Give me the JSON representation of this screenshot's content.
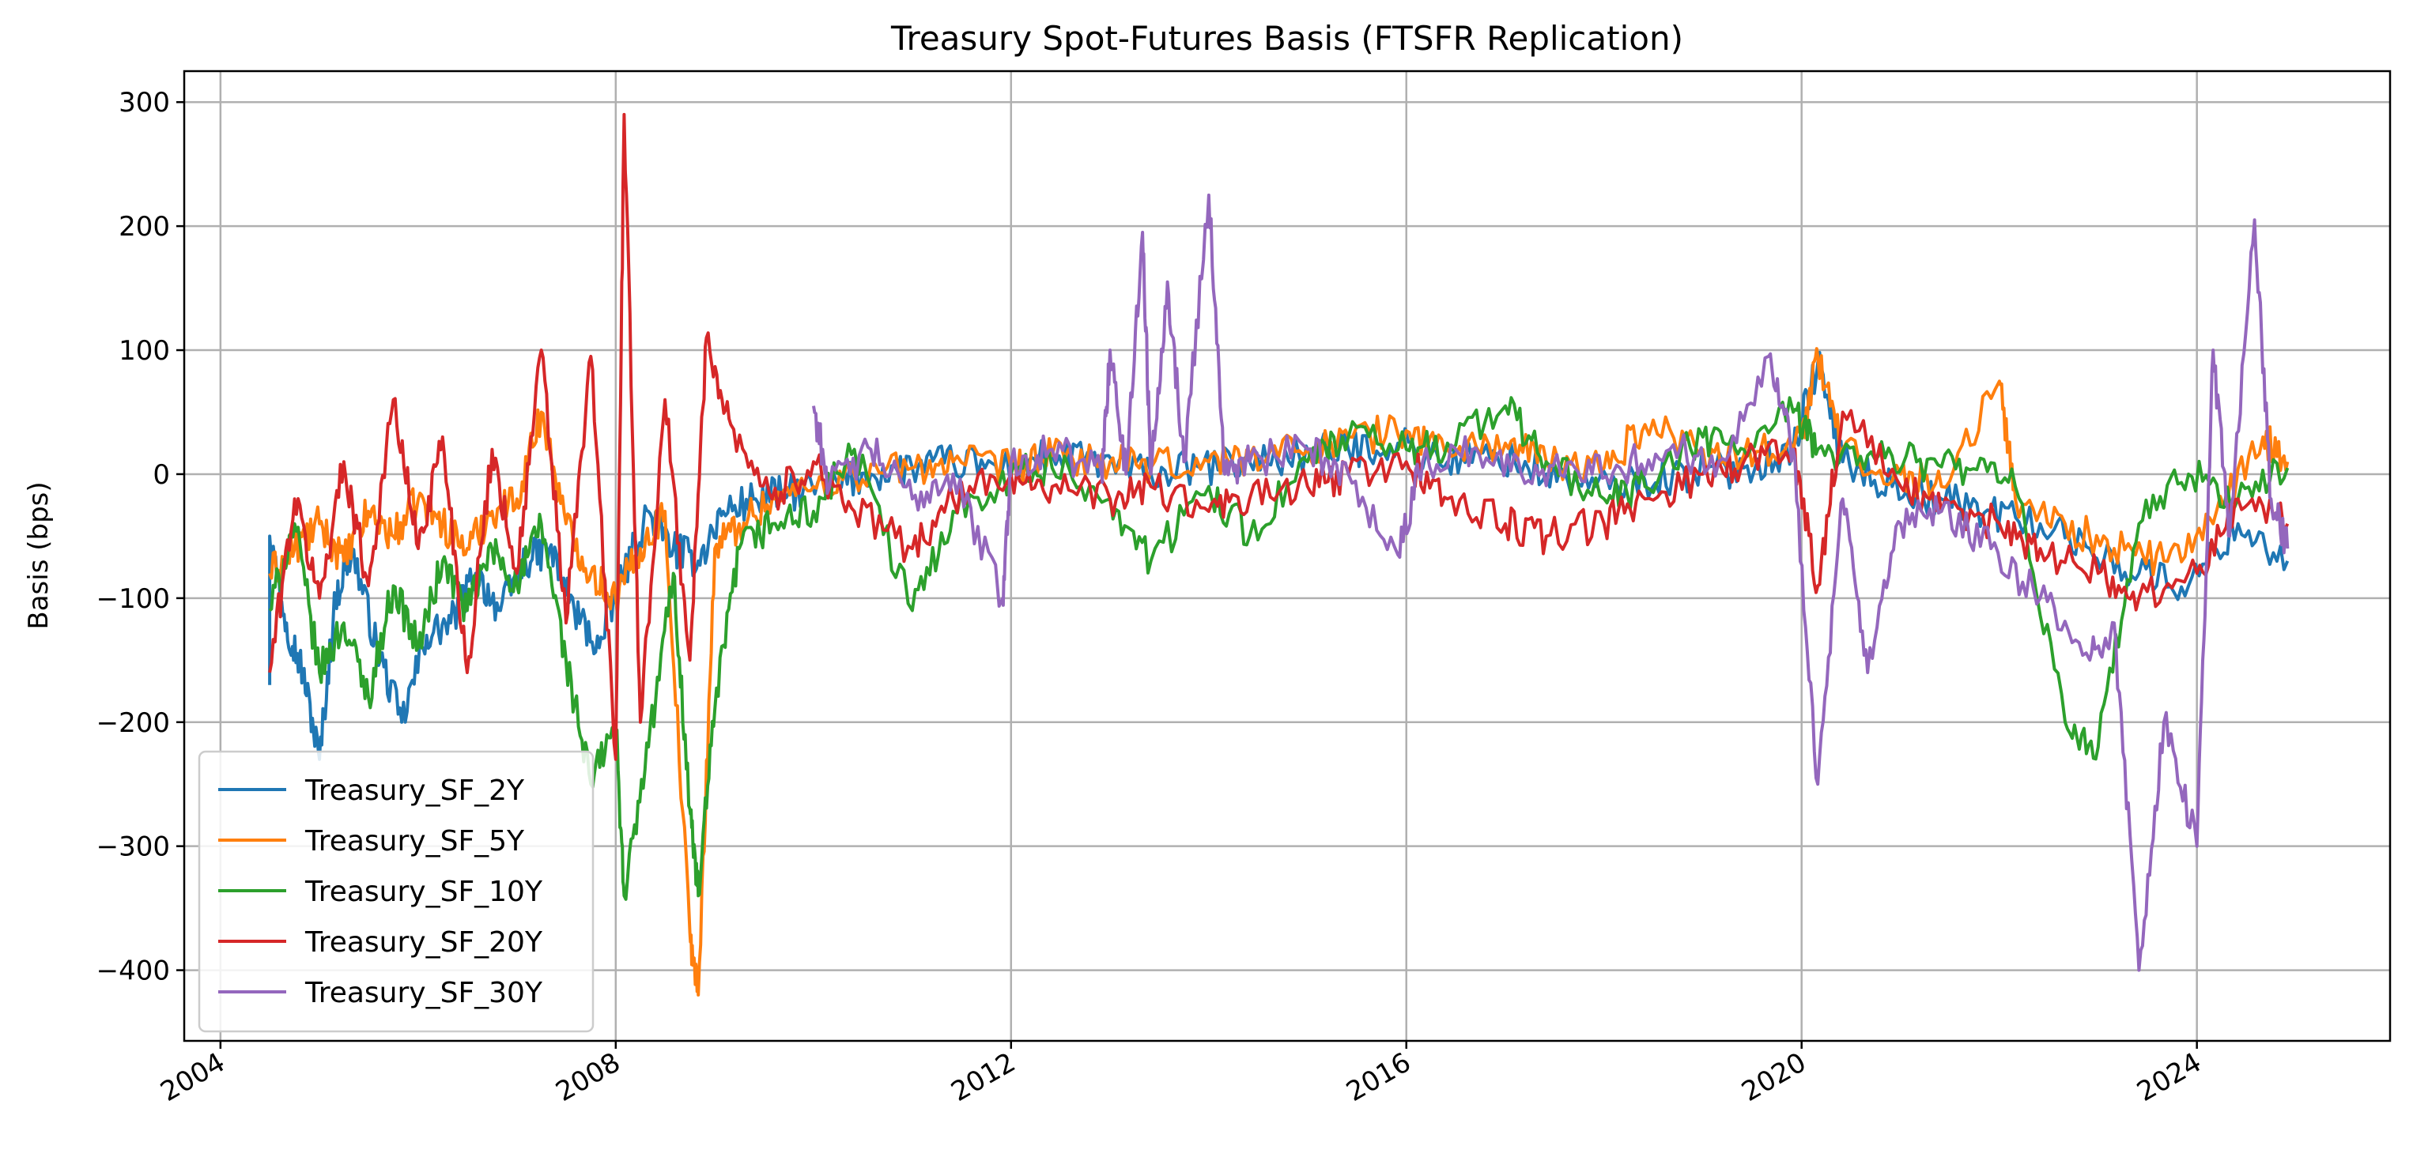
{
  "chart_data": {
    "type": "line",
    "title": "Treasury Spot-Futures Basis (FTSFR Replication)",
    "xlabel": "",
    "ylabel": "Basis (bps)",
    "x_axis_type": "date",
    "xlim": [
      "2003-08-20",
      "2025-12-15"
    ],
    "ylim": [
      -457,
      325
    ],
    "xticks": [
      "2004",
      "2008",
      "2012",
      "2016",
      "2020",
      "2024"
    ],
    "yticks": [
      -400,
      -300,
      -200,
      -100,
      0,
      100,
      200,
      300
    ],
    "ytick_labels": [
      "−400",
      "−300",
      "−200",
      "−100",
      "0",
      "100",
      "200",
      "300"
    ],
    "grid": true,
    "legend_position": "lower-left",
    "series": [
      {
        "name": "Treasury_SF_2Y",
        "color": "#1f77b4",
        "points": [
          [
            "2004-07",
            -170
          ],
          [
            "2004-07",
            -50
          ],
          [
            "2004-09",
            -120
          ],
          [
            "2004-11",
            -160
          ],
          [
            "2005-01",
            -230
          ],
          [
            "2005-03",
            -100
          ],
          [
            "2005-05",
            -60
          ],
          [
            "2005-08",
            -140
          ],
          [
            "2005-11",
            -200
          ],
          [
            "2006-02",
            -130
          ],
          [
            "2006-05",
            -120
          ],
          [
            "2006-08",
            -80
          ],
          [
            "2006-11",
            -110
          ],
          [
            "2007-02",
            -70
          ],
          [
            "2007-05",
            -60
          ],
          [
            "2007-08",
            -110
          ],
          [
            "2007-11",
            -140
          ],
          [
            "2008-02",
            -80
          ],
          [
            "2008-05",
            -30
          ],
          [
            "2008-08",
            -60
          ],
          [
            "2008-11",
            -70
          ],
          [
            "2009-02",
            -30
          ],
          [
            "2009-06",
            -20
          ],
          [
            "2009-10",
            -15
          ],
          [
            "2010-03",
            -10
          ],
          [
            "2010-08",
            0
          ],
          [
            "2011-01",
            5
          ],
          [
            "2011-06",
            10
          ],
          [
            "2011-12",
            5
          ],
          [
            "2012-06",
            15
          ],
          [
            "2012-12",
            10
          ],
          [
            "2013-06",
            0
          ],
          [
            "2013-12",
            5
          ],
          [
            "2014-06",
            10
          ],
          [
            "2014-12",
            15
          ],
          [
            "2015-06",
            20
          ],
          [
            "2015-12",
            25
          ],
          [
            "2016-06",
            10
          ],
          [
            "2016-12",
            15
          ],
          [
            "2017-06",
            0
          ],
          [
            "2017-12",
            -10
          ],
          [
            "2018-06",
            -5
          ],
          [
            "2018-12",
            0
          ],
          [
            "2019-06",
            5
          ],
          [
            "2019-12",
            20
          ],
          [
            "2020-03",
            90
          ],
          [
            "2020-06",
            10
          ],
          [
            "2020-12",
            -10
          ],
          [
            "2021-06",
            -20
          ],
          [
            "2021-12",
            -30
          ],
          [
            "2022-06",
            -40
          ],
          [
            "2022-12",
            -60
          ],
          [
            "2023-06",
            -80
          ],
          [
            "2023-12",
            -90
          ],
          [
            "2024-06",
            -40
          ],
          [
            "2024-12",
            -70
          ]
        ]
      },
      {
        "name": "Treasury_SF_5Y",
        "color": "#ff7f0e",
        "points": [
          [
            "2004-07",
            -80
          ],
          [
            "2004-10",
            -60
          ],
          [
            "2005-01",
            -40
          ],
          [
            "2005-04",
            -70
          ],
          [
            "2005-07",
            -30
          ],
          [
            "2005-10",
            -50
          ],
          [
            "2006-01",
            -20
          ],
          [
            "2006-04",
            -40
          ],
          [
            "2006-07",
            -60
          ],
          [
            "2006-10",
            -30
          ],
          [
            "2007-01",
            -20
          ],
          [
            "2007-04",
            50
          ],
          [
            "2007-07",
            -40
          ],
          [
            "2007-10",
            -80
          ],
          [
            "2008-01",
            -100
          ],
          [
            "2008-04",
            -60
          ],
          [
            "2008-07",
            -30
          ],
          [
            "2008-10",
            -370
          ],
          [
            "2008-11",
            -420
          ],
          [
            "2009-01",
            -60
          ],
          [
            "2009-04",
            -40
          ],
          [
            "2009-08",
            -20
          ],
          [
            "2010-01",
            -10
          ],
          [
            "2010-06",
            0
          ],
          [
            "2011-01",
            5
          ],
          [
            "2011-06",
            10
          ],
          [
            "2012-01",
            5
          ],
          [
            "2012-06",
            15
          ],
          [
            "2013-01",
            10
          ],
          [
            "2013-06",
            5
          ],
          [
            "2014-01",
            10
          ],
          [
            "2014-06",
            15
          ],
          [
            "2015-01",
            20
          ],
          [
            "2015-06",
            30
          ],
          [
            "2016-01",
            35
          ],
          [
            "2016-06",
            20
          ],
          [
            "2017-01",
            25
          ],
          [
            "2017-06",
            10
          ],
          [
            "2018-01",
            5
          ],
          [
            "2018-06",
            40
          ],
          [
            "2019-01",
            20
          ],
          [
            "2019-06",
            15
          ],
          [
            "2020-01",
            30
          ],
          [
            "2020-03",
            95
          ],
          [
            "2020-06",
            20
          ],
          [
            "2021-01",
            0
          ],
          [
            "2021-06",
            -10
          ],
          [
            "2022-01",
            75
          ],
          [
            "2022-03",
            -20
          ],
          [
            "2022-09",
            -40
          ],
          [
            "2023-03",
            -60
          ],
          [
            "2023-09",
            -70
          ],
          [
            "2024-03",
            -40
          ],
          [
            "2024-09",
            30
          ],
          [
            "2024-12",
            10
          ]
        ]
      },
      {
        "name": "Treasury_SF_10Y",
        "color": "#2ca02c",
        "points": [
          [
            "2004-07",
            -110
          ],
          [
            "2004-10",
            -40
          ],
          [
            "2005-01",
            -160
          ],
          [
            "2005-04",
            -120
          ],
          [
            "2005-07",
            -180
          ],
          [
            "2005-10",
            -90
          ],
          [
            "2006-01",
            -140
          ],
          [
            "2006-04",
            -70
          ],
          [
            "2006-07",
            -110
          ],
          [
            "2006-10",
            -60
          ],
          [
            "2007-01",
            -90
          ],
          [
            "2007-04",
            -40
          ],
          [
            "2007-07",
            -150
          ],
          [
            "2007-10",
            -250
          ],
          [
            "2008-01",
            -200
          ],
          [
            "2008-02",
            -340
          ],
          [
            "2008-05",
            -220
          ],
          [
            "2008-08",
            -80
          ],
          [
            "2008-10",
            -270
          ],
          [
            "2008-11",
            -340
          ],
          [
            "2009-01",
            -190
          ],
          [
            "2009-04",
            -60
          ],
          [
            "2009-08",
            -40
          ],
          [
            "2010-01",
            -30
          ],
          [
            "2010-06",
            20
          ],
          [
            "2011-01",
            -110
          ],
          [
            "2011-06",
            -30
          ],
          [
            "2012-01",
            0
          ],
          [
            "2012-06",
            5
          ],
          [
            "2013-01",
            -20
          ],
          [
            "2013-06",
            -70
          ],
          [
            "2014-01",
            -10
          ],
          [
            "2014-06",
            -50
          ],
          [
            "2015-01",
            10
          ],
          [
            "2015-06",
            30
          ],
          [
            "2016-01",
            20
          ],
          [
            "2016-06",
            25
          ],
          [
            "2017-01",
            55
          ],
          [
            "2017-06",
            10
          ],
          [
            "2018-01",
            -20
          ],
          [
            "2018-06",
            -10
          ],
          [
            "2019-01",
            30
          ],
          [
            "2019-06",
            20
          ],
          [
            "2019-12",
            50
          ],
          [
            "2020-03",
            20
          ],
          [
            "2020-09",
            15
          ],
          [
            "2021-03",
            10
          ],
          [
            "2021-09",
            5
          ],
          [
            "2022-03",
            -10
          ],
          [
            "2022-09",
            -200
          ],
          [
            "2023-01",
            -220
          ],
          [
            "2023-06",
            -40
          ],
          [
            "2023-12",
            0
          ],
          [
            "2024-06",
            -20
          ],
          [
            "2024-12",
            5
          ]
        ]
      },
      {
        "name": "Treasury_SF_20Y",
        "color": "#d62728",
        "points": [
          [
            "2004-07",
            -160
          ],
          [
            "2004-10",
            -20
          ],
          [
            "2005-01",
            -100
          ],
          [
            "2005-04",
            10
          ],
          [
            "2005-07",
            -90
          ],
          [
            "2005-10",
            60
          ],
          [
            "2006-01",
            -60
          ],
          [
            "2006-04",
            30
          ],
          [
            "2006-07",
            -160
          ],
          [
            "2006-10",
            20
          ],
          [
            "2007-01",
            -80
          ],
          [
            "2007-04",
            100
          ],
          [
            "2007-07",
            -120
          ],
          [
            "2007-10",
            95
          ],
          [
            "2008-01",
            -230
          ],
          [
            "2008-02",
            290
          ],
          [
            "2008-04",
            -200
          ],
          [
            "2008-07",
            60
          ],
          [
            "2008-10",
            -150
          ],
          [
            "2008-12",
            110
          ],
          [
            "2009-03",
            40
          ],
          [
            "2009-08",
            -20
          ],
          [
            "2010-01",
            10
          ],
          [
            "2010-06",
            -30
          ],
          [
            "2011-01",
            -60
          ],
          [
            "2011-06",
            -20
          ],
          [
            "2012-01",
            0
          ],
          [
            "2012-06",
            -10
          ],
          [
            "2013-01",
            -20
          ],
          [
            "2013-06",
            -10
          ],
          [
            "2014-01",
            -30
          ],
          [
            "2014-06",
            -20
          ],
          [
            "2015-01",
            -10
          ],
          [
            "2015-06",
            0
          ],
          [
            "2016-01",
            10
          ],
          [
            "2016-06",
            -20
          ],
          [
            "2017-01",
            -40
          ],
          [
            "2017-06",
            -50
          ],
          [
            "2018-01",
            -40
          ],
          [
            "2018-06",
            -20
          ],
          [
            "2019-01",
            0
          ],
          [
            "2019-06",
            10
          ],
          [
            "2019-12",
            20
          ],
          [
            "2020-03",
            -90
          ],
          [
            "2020-06",
            50
          ],
          [
            "2021-01",
            -10
          ],
          [
            "2021-06",
            -30
          ],
          [
            "2022-01",
            -40
          ],
          [
            "2022-06",
            -60
          ],
          [
            "2023-01",
            -80
          ],
          [
            "2023-06",
            -100
          ],
          [
            "2024-01",
            -80
          ],
          [
            "2024-06",
            -20
          ],
          [
            "2024-12",
            -40
          ]
        ]
      },
      {
        "name": "Treasury_SF_30Y",
        "color": "#9467bd",
        "points": [
          [
            "2010-01",
            55
          ],
          [
            "2010-03",
            -10
          ],
          [
            "2010-08",
            20
          ],
          [
            "2011-01",
            -20
          ],
          [
            "2011-06",
            0
          ],
          [
            "2011-12",
            -100
          ],
          [
            "2012-01",
            10
          ],
          [
            "2012-06",
            20
          ],
          [
            "2012-12",
            0
          ],
          [
            "2013-01",
            100
          ],
          [
            "2013-03",
            0
          ],
          [
            "2013-05",
            195
          ],
          [
            "2013-06",
            0
          ],
          [
            "2013-08",
            155
          ],
          [
            "2013-10",
            10
          ],
          [
            "2014-01",
            225
          ],
          [
            "2014-03",
            0
          ],
          [
            "2014-06",
            10
          ],
          [
            "2015-01",
            20
          ],
          [
            "2015-06",
            0
          ],
          [
            "2015-12",
            -65
          ],
          [
            "2016-03",
            10
          ],
          [
            "2016-09",
            20
          ],
          [
            "2017-03",
            0
          ],
          [
            "2017-09",
            10
          ],
          [
            "2018-03",
            5
          ],
          [
            "2018-09",
            20
          ],
          [
            "2019-03",
            10
          ],
          [
            "2019-09",
            95
          ],
          [
            "2019-12",
            20
          ],
          [
            "2020-03",
            -250
          ],
          [
            "2020-06",
            -20
          ],
          [
            "2020-09",
            -160
          ],
          [
            "2021-01",
            -40
          ],
          [
            "2021-06",
            -30
          ],
          [
            "2021-12",
            -60
          ],
          [
            "2022-06",
            -100
          ],
          [
            "2022-12",
            -150
          ],
          [
            "2023-03",
            -120
          ],
          [
            "2023-06",
            -400
          ],
          [
            "2023-09",
            -200
          ],
          [
            "2024-01",
            -300
          ],
          [
            "2024-03",
            100
          ],
          [
            "2024-05",
            -50
          ],
          [
            "2024-08",
            205
          ],
          [
            "2024-10",
            -20
          ],
          [
            "2024-12",
            -60
          ]
        ]
      }
    ]
  }
}
